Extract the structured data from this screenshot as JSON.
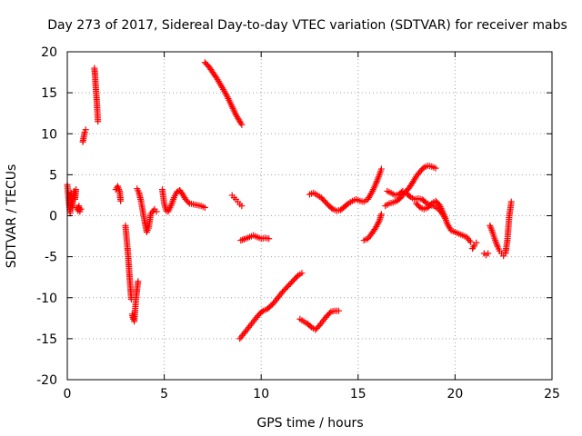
{
  "chart_data": {
    "type": "scatter",
    "title": "Day 273 of 2017, Sidereal Day-to-day VTEC variation (SDTVAR) for receiver mabs",
    "xlabel": "GPS time / hours",
    "ylabel": "SDTVAR / TECUs",
    "xlim": [
      0,
      25
    ],
    "ylim": [
      -20,
      20
    ],
    "xticks": [
      0,
      5,
      10,
      15,
      20,
      25
    ],
    "yticks": [
      -20,
      -15,
      -10,
      -5,
      0,
      5,
      10,
      15,
      20
    ],
    "grid": true,
    "marker": "+",
    "colors": {
      "series": "#ff0000",
      "axis": "#000000",
      "grid": "#a0a0a0"
    },
    "series": [
      {
        "name": "SDTVAR",
        "segments": [
          [
            [
              0.0,
              3.8
            ],
            [
              0.05,
              2.5
            ],
            [
              0.1,
              1.2
            ],
            [
              0.15,
              0.3
            ],
            [
              0.2,
              2.8
            ],
            [
              0.25,
              1.0
            ],
            [
              0.3,
              2.2
            ],
            [
              0.35,
              3.0
            ],
            [
              0.4,
              2.0
            ],
            [
              0.45,
              3.2
            ]
          ],
          [
            [
              0.5,
              1.0
            ],
            [
              0.55,
              0.6
            ],
            [
              0.6,
              1.2
            ],
            [
              0.65,
              0.5
            ],
            [
              0.7,
              0.8
            ]
          ],
          [
            [
              0.8,
              9.0
            ],
            [
              0.85,
              9.6
            ],
            [
              0.9,
              10.2
            ],
            [
              0.95,
              10.5
            ]
          ],
          [
            [
              1.4,
              18.0
            ],
            [
              1.43,
              17.2
            ],
            [
              1.46,
              16.0
            ],
            [
              1.49,
              15.0
            ],
            [
              1.52,
              14.0
            ],
            [
              1.55,
              12.8
            ],
            [
              1.58,
              11.5
            ]
          ],
          [
            [
              2.5,
              3.2
            ],
            [
              2.6,
              3.6
            ],
            [
              2.7,
              3.0
            ],
            [
              2.75,
              1.8
            ]
          ],
          [
            [
              3.0,
              -1.2
            ],
            [
              3.05,
              -2.5
            ],
            [
              3.1,
              -3.8
            ],
            [
              3.15,
              -5.2
            ],
            [
              3.2,
              -7.0
            ],
            [
              3.25,
              -8.6
            ],
            [
              3.3,
              -10.2
            ]
          ],
          [
            [
              3.35,
              -12.0
            ],
            [
              3.4,
              -12.6
            ],
            [
              3.45,
              -12.9
            ],
            [
              3.5,
              -11.5
            ],
            [
              3.55,
              -10.0
            ],
            [
              3.6,
              -9.0
            ],
            [
              3.65,
              -8.0
            ]
          ],
          [
            [
              3.6,
              3.3
            ],
            [
              3.7,
              2.8
            ],
            [
              3.8,
              1.8
            ],
            [
              3.9,
              0.5
            ],
            [
              4.0,
              -0.8
            ],
            [
              4.1,
              -2.0
            ],
            [
              4.2,
              -1.5
            ],
            [
              4.3,
              0.2
            ],
            [
              4.5,
              0.8
            ],
            [
              4.6,
              0.5
            ]
          ],
          [
            [
              4.9,
              3.2
            ],
            [
              5.0,
              1.5
            ],
            [
              5.1,
              0.6
            ],
            [
              5.2,
              0.5
            ],
            [
              5.35,
              1.2
            ],
            [
              5.5,
              2.2
            ],
            [
              5.65,
              2.9
            ],
            [
              5.8,
              3.1
            ],
            [
              5.95,
              2.6
            ],
            [
              6.1,
              2.0
            ],
            [
              6.3,
              1.5
            ],
            [
              6.5,
              1.4
            ],
            [
              6.7,
              1.3
            ],
            [
              6.9,
              1.2
            ],
            [
              7.1,
              1.0
            ]
          ],
          [
            [
              7.1,
              18.7
            ],
            [
              7.3,
              18.2
            ],
            [
              7.5,
              17.5
            ],
            [
              7.7,
              16.8
            ],
            [
              7.9,
              16.0
            ],
            [
              8.1,
              15.2
            ],
            [
              8.3,
              14.3
            ],
            [
              8.5,
              13.3
            ],
            [
              8.7,
              12.3
            ],
            [
              8.9,
              11.5
            ],
            [
              9.0,
              11.1
            ]
          ],
          [
            [
              8.5,
              2.5
            ],
            [
              8.6,
              2.2
            ],
            [
              8.7,
              2.0
            ],
            [
              8.8,
              1.7
            ],
            [
              8.9,
              1.4
            ],
            [
              9.0,
              1.2
            ]
          ],
          [
            [
              8.95,
              -3.0
            ],
            [
              9.2,
              -2.8
            ],
            [
              9.4,
              -2.6
            ],
            [
              9.6,
              -2.4
            ],
            [
              9.8,
              -2.6
            ],
            [
              10.0,
              -2.8
            ],
            [
              10.2,
              -2.7
            ],
            [
              10.4,
              -2.8
            ]
          ],
          [
            [
              8.9,
              -15.0
            ],
            [
              9.1,
              -14.4
            ],
            [
              9.3,
              -13.8
            ],
            [
              9.5,
              -13.2
            ],
            [
              9.7,
              -12.6
            ],
            [
              9.9,
              -12.0
            ],
            [
              10.1,
              -11.6
            ],
            [
              10.3,
              -11.4
            ],
            [
              10.5,
              -11.0
            ],
            [
              10.7,
              -10.5
            ],
            [
              10.9,
              -9.9
            ],
            [
              11.1,
              -9.3
            ],
            [
              11.3,
              -8.8
            ],
            [
              11.5,
              -8.3
            ],
            [
              11.7,
              -7.8
            ],
            [
              11.9,
              -7.3
            ],
            [
              12.1,
              -7.0
            ]
          ],
          [
            [
              12.0,
              -12.6
            ],
            [
              12.2,
              -12.9
            ],
            [
              12.4,
              -13.2
            ],
            [
              12.6,
              -13.6
            ],
            [
              12.8,
              -13.9
            ],
            [
              13.0,
              -13.4
            ],
            [
              13.2,
              -12.8
            ],
            [
              13.4,
              -12.2
            ],
            [
              13.6,
              -11.7
            ],
            [
              13.8,
              -11.6
            ],
            [
              14.0,
              -11.6
            ]
          ],
          [
            [
              12.5,
              2.6
            ],
            [
              12.7,
              2.8
            ],
            [
              12.9,
              2.5
            ],
            [
              13.1,
              2.2
            ],
            [
              13.3,
              1.7
            ],
            [
              13.5,
              1.2
            ],
            [
              13.7,
              0.8
            ],
            [
              13.9,
              0.6
            ],
            [
              14.1,
              0.7
            ],
            [
              14.3,
              1.1
            ],
            [
              14.5,
              1.5
            ],
            [
              14.7,
              1.8
            ],
            [
              14.9,
              2.0
            ],
            [
              15.1,
              1.8
            ],
            [
              15.3,
              1.7
            ],
            [
              15.5,
              2.0
            ],
            [
              15.7,
              2.8
            ],
            [
              15.9,
              3.8
            ],
            [
              16.1,
              5.0
            ],
            [
              16.2,
              5.7
            ]
          ],
          [
            [
              15.3,
              -3.0
            ],
            [
              15.5,
              -2.8
            ],
            [
              15.7,
              -2.2
            ],
            [
              15.9,
              -1.5
            ],
            [
              16.1,
              -0.6
            ],
            [
              16.2,
              0.2
            ]
          ],
          [
            [
              16.4,
              1.2
            ],
            [
              16.6,
              1.5
            ],
            [
              16.8,
              1.6
            ],
            [
              17.0,
              1.8
            ],
            [
              17.2,
              2.2
            ],
            [
              17.4,
              2.8
            ],
            [
              17.6,
              3.3
            ],
            [
              17.8,
              4.0
            ],
            [
              18.0,
              4.8
            ],
            [
              18.2,
              5.4
            ],
            [
              18.4,
              5.9
            ],
            [
              18.6,
              6.1
            ],
            [
              18.8,
              6.0
            ],
            [
              19.0,
              5.8
            ]
          ],
          [
            [
              16.5,
              3.0
            ],
            [
              16.7,
              2.8
            ],
            [
              16.9,
              2.5
            ],
            [
              17.1,
              2.6
            ],
            [
              17.3,
              3.0
            ],
            [
              17.5,
              2.7
            ],
            [
              17.7,
              2.3
            ],
            [
              17.9,
              2.0
            ],
            [
              18.1,
              2.1
            ],
            [
              18.3,
              2.0
            ],
            [
              18.5,
              1.6
            ],
            [
              18.7,
              1.3
            ],
            [
              18.9,
              1.2
            ],
            [
              19.1,
              0.9
            ],
            [
              19.3,
              0.4
            ],
            [
              19.5,
              -0.3
            ]
          ],
          [
            [
              18.0,
              1.5
            ],
            [
              18.2,
              1.0
            ],
            [
              18.4,
              0.8
            ],
            [
              18.6,
              1.0
            ],
            [
              18.8,
              1.5
            ],
            [
              19.0,
              1.8
            ],
            [
              19.2,
              1.3
            ],
            [
              19.4,
              0.3
            ],
            [
              19.6,
              -1.0
            ],
            [
              19.8,
              -1.8
            ],
            [
              20.0,
              -2.0
            ],
            [
              20.2,
              -2.2
            ],
            [
              20.4,
              -2.4
            ],
            [
              20.6,
              -2.6
            ],
            [
              20.8,
              -3.2
            ]
          ],
          [
            [
              20.9,
              -4.0
            ],
            [
              21.0,
              -3.6
            ],
            [
              21.1,
              -3.3
            ]
          ],
          [
            [
              21.5,
              -4.6
            ],
            [
              21.6,
              -4.8
            ],
            [
              21.7,
              -4.6
            ]
          ],
          [
            [
              21.8,
              -1.2
            ],
            [
              21.9,
              -1.8
            ],
            [
              22.0,
              -2.5
            ],
            [
              22.1,
              -3.2
            ],
            [
              22.2,
              -3.8
            ],
            [
              22.3,
              -4.3
            ],
            [
              22.4,
              -4.6
            ],
            [
              22.5,
              -4.9
            ],
            [
              22.6,
              -4.6
            ],
            [
              22.7,
              -3.0
            ],
            [
              22.75,
              -1.5
            ],
            [
              22.8,
              0.0
            ],
            [
              22.85,
              0.8
            ],
            [
              22.9,
              1.7
            ]
          ]
        ]
      }
    ]
  }
}
